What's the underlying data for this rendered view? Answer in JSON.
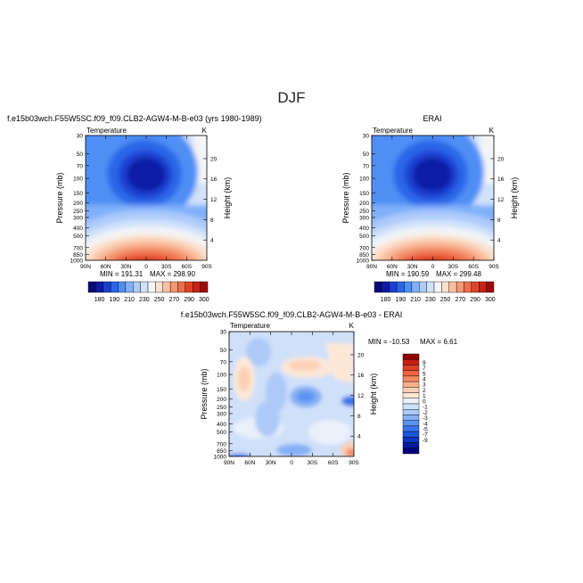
{
  "figure": {
    "title": "DJF"
  },
  "shared_axes": {
    "pressure_ticks": [
      "30",
      "50",
      "70",
      "100",
      "150",
      "200",
      "250",
      "300",
      "400",
      "500",
      "700",
      "850",
      "1000"
    ],
    "pressure_values": [
      30,
      50,
      70,
      100,
      150,
      200,
      250,
      300,
      400,
      500,
      700,
      850,
      1000
    ],
    "height_ticks": [
      "4",
      "8",
      "12",
      "16",
      "20"
    ],
    "height_values": [
      4,
      8,
      12,
      16,
      20
    ],
    "lat_ticks": [
      "90N",
      "60N",
      "30N",
      "0",
      "30S",
      "60S",
      "90S"
    ],
    "ylabel_left": "Pressure (mb)",
    "ylabel_right": "Height (km)"
  },
  "colors": {
    "abs_scale": [
      "#08087a",
      "#0d1ca6",
      "#1a3fd0",
      "#2a66e8",
      "#4f8ff5",
      "#80b0fa",
      "#aecbfb",
      "#d2e2fb",
      "#f3f5f7",
      "#fbe0cc",
      "#f9c0a0",
      "#f59873",
      "#ee6f4c",
      "#e04428",
      "#c42415",
      "#9e0c07"
    ],
    "diff_scale": [
      "#00007a",
      "#061a9c",
      "#0d36bf",
      "#1c55db",
      "#3a74ea",
      "#5a92f0",
      "#86b0f5",
      "#adc9f8",
      "#cfe0f9",
      "#eaf1fb",
      "#fde8d8",
      "#fbcfb3",
      "#f8b08c",
      "#f48a63",
      "#ec6440",
      "#de4023",
      "#c41f0f",
      "#8f0000"
    ]
  },
  "chart_data": [
    {
      "type": "heatmap",
      "title": "f.e15b03wch.F55W5SC.f09_f09.CLB2-AGW4-M-B-e03 (yrs 1980-1989)",
      "subtitle": "Temperature",
      "units": "K",
      "stats": {
        "min_label": "MIN = 191.31",
        "max_label": "MAX = 298.90",
        "min": 191.31,
        "max": 298.9
      },
      "colorbar": {
        "labels": [
          "180",
          "190",
          "210",
          "230",
          "250",
          "270",
          "290",
          "300"
        ],
        "levels": [
          180,
          185,
          190,
          200,
          210,
          220,
          230,
          240,
          250,
          260,
          270,
          280,
          290,
          295,
          300
        ]
      }
    },
    {
      "type": "heatmap",
      "title": "ERAI",
      "subtitle": "Temperature",
      "units": "K",
      "stats": {
        "min_label": "MIN = 190.59",
        "max_label": "MAX = 299.48",
        "min": 190.59,
        "max": 299.48
      },
      "colorbar": {
        "labels": [
          "180",
          "190",
          "210",
          "230",
          "250",
          "270",
          "290",
          "300"
        ],
        "levels": [
          180,
          185,
          190,
          200,
          210,
          220,
          230,
          240,
          250,
          260,
          270,
          280,
          290,
          295,
          300
        ]
      }
    },
    {
      "type": "heatmap",
      "title": "f.e15b03wch.F55W5SC.f09_f09.CLB2-AGW4-M-B-e03 - ERAI",
      "subtitle": "Temperature",
      "units": "K",
      "stats": {
        "min_label": "MIN = -10.53",
        "max_label": "MAX = 6.61",
        "min": -10.53,
        "max": 6.61
      },
      "colorbar": {
        "labels": [
          "9",
          "7",
          "5",
          "4",
          "3",
          "2",
          "1",
          "0",
          "-1",
          "-2",
          "-3",
          "-4",
          "-5",
          "-7",
          "-9"
        ],
        "levels": [
          9,
          7,
          5,
          4,
          3,
          2,
          1,
          0,
          -1,
          -2,
          -3,
          -4,
          -5,
          -7,
          -9
        ]
      }
    }
  ]
}
